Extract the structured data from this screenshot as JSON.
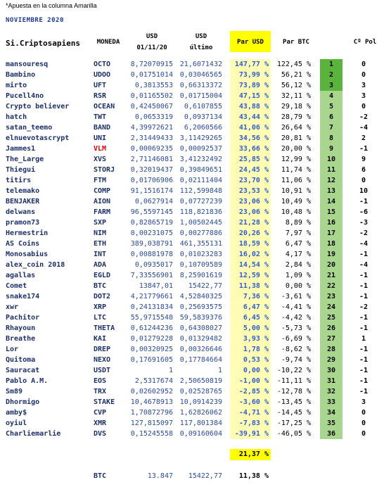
{
  "note": "*Apuesta en la columna Amarilla",
  "month": "NOVIEMBRE 2020",
  "headers": {
    "name": "Si.Criptosapiens",
    "coin": "MONEDA",
    "usd_start_1": "USD",
    "usd_start_2": "01/11/20",
    "usd_last_1": "USD",
    "usd_last_2": "último",
    "par_usd": "Par USD",
    "par_btc": "Par BTC",
    "pol": "Cº Pol"
  },
  "colors": {
    "rank_top": "#5ab43c",
    "rank_rest": "#a8d68c",
    "yellow": "#ffff00",
    "yellow_light": "#fffcb3"
  },
  "rows": [
    {
      "name": "mansouresq",
      "coin": "OCTO",
      "usd_start": "8,72070915",
      "usd_last": "21,6071432",
      "par_usd": "147,77 %",
      "par_btc": "122,45 %",
      "rank": "1",
      "pol": "0"
    },
    {
      "name": "Bambino",
      "coin": "UDOO",
      "usd_start": "0,01751014",
      "usd_last": "0,03046565",
      "par_usd": "73,99 %",
      "par_btc": "56,21 %",
      "rank": "2",
      "pol": "0"
    },
    {
      "name": "mirto",
      "coin": "UFT",
      "usd_start": "0,3813553",
      "usd_last": "0,66313372",
      "par_usd": "73,89 %",
      "par_btc": "56,12 %",
      "rank": "3",
      "pol": "3"
    },
    {
      "name": "Pucell4no",
      "coin": "RSR",
      "usd_start": "0,01165502",
      "usd_last": "0,01715004",
      "par_usd": "47,15 %",
      "par_btc": "32,11 %",
      "rank": "4",
      "pol": "3"
    },
    {
      "name": "Crypto believer",
      "coin": "OCEAN",
      "usd_start": "0,42450067",
      "usd_last": "0,6107855",
      "par_usd": "43,88 %",
      "par_btc": "29,18 %",
      "rank": "5",
      "pol": "0"
    },
    {
      "name": "hatch",
      "coin": "TWT",
      "usd_start": "0,0653319",
      "usd_last": "0,0937134",
      "par_usd": "43,44 %",
      "par_btc": "28,79 %",
      "rank": "6",
      "pol": "-2"
    },
    {
      "name": "satan_teemo",
      "coin": "BAND",
      "usd_start": "4,39972621",
      "usd_last": "6,2060566",
      "par_usd": "41,06 %",
      "par_btc": "26,64 %",
      "rank": "7",
      "pol": "-4"
    },
    {
      "name": "elnuevotascrypt",
      "coin": "UNI",
      "usd_start": "2,31449433",
      "usd_last": "3,11429265",
      "par_usd": "34,56 %",
      "par_btc": "20,81 %",
      "rank": "8",
      "pol": "2"
    },
    {
      "name": "Jammes1",
      "coin": "VLM",
      "red": true,
      "usd_start": "0,00069235",
      "usd_last": "0,00092537",
      "par_usd": "33,66 %",
      "par_btc": "20,00 %",
      "rank": "9",
      "pol": "-1"
    },
    {
      "name": "The_Large",
      "coin": "XVS",
      "usd_start": "2,71146081",
      "usd_last": "3,41232492",
      "par_usd": "25,85 %",
      "par_btc": "12,99 %",
      "rank": "10",
      "pol": "9"
    },
    {
      "name": "Thiegui",
      "coin": "STORJ",
      "usd_start": "0,32019437",
      "usd_last": "0,39849651",
      "par_usd": "24,45 %",
      "par_btc": "11,74 %",
      "rank": "11",
      "pol": "6"
    },
    {
      "name": "titirs",
      "coin": "FTM",
      "usd_start": "0,01706906",
      "usd_last": "0,02111404",
      "par_usd": "23,70 %",
      "par_btc": "11,06 %",
      "rank": "12",
      "pol": "0"
    },
    {
      "name": "telemako",
      "coin": "COMP",
      "usd_start": "91,1516174",
      "usd_last": "112,599848",
      "par_usd": "23,53 %",
      "par_btc": "10,91 %",
      "rank": "13",
      "pol": "10"
    },
    {
      "name": "BENJAKER",
      "coin": "AION",
      "usd_start": "0,0627914",
      "usd_last": "0,07727239",
      "par_usd": "23,06 %",
      "par_btc": "10,49 %",
      "rank": "14",
      "pol": "-1"
    },
    {
      "name": "delwans",
      "coin": "FARM",
      "usd_start": "96,5597145",
      "usd_last": "118,821836",
      "par_usd": "23,06 %",
      "par_btc": "10,48 %",
      "rank": "15",
      "pol": "-6"
    },
    {
      "name": "pramon73",
      "coin": "SXP",
      "usd_start": "0,82865719",
      "usd_last": "1,00502445",
      "par_usd": "21,28 %",
      "par_btc": "8,89 %",
      "rank": "16",
      "pol": "-3"
    },
    {
      "name": "Hermestrin",
      "coin": "NIM",
      "usd_start": "0,00231075",
      "usd_last": "0,00277886",
      "par_usd": "20,26 %",
      "par_btc": "7,97 %",
      "rank": "17",
      "pol": "-2"
    },
    {
      "name": "AS Coins",
      "coin": "ETH",
      "usd_start": "389,038791",
      "usd_last": "461,355131",
      "par_usd": "18,59 %",
      "par_btc": "6,47 %",
      "rank": "18",
      "pol": "-4"
    },
    {
      "name": "Monosabius",
      "coin": "INT",
      "usd_start": "0,00881978",
      "usd_last": "0,01023283",
      "par_usd": "16,02 %",
      "par_btc": "4,17 %",
      "rank": "19",
      "pol": "-1"
    },
    {
      "name": "alex_coin 2018",
      "coin": "ADA",
      "usd_start": "0,0935017",
      "usd_last": "0,10709589",
      "par_usd": "14,54 %",
      "par_btc": "2,84 %",
      "rank": "20",
      "pol": "-4"
    },
    {
      "name": "agallas",
      "coin": "EGLD",
      "usd_start": "7,33556901",
      "usd_last": "8,25901619",
      "par_usd": "12,59 %",
      "par_btc": "1,09 %",
      "rank": "21",
      "pol": "-1"
    },
    {
      "name": "Comet",
      "coin": "BTC",
      "usd_start": "13847,01",
      "usd_last": "15422,77",
      "par_usd": "11,38 %",
      "par_btc": "0,00 %",
      "rank": "22",
      "pol": "-1"
    },
    {
      "name": "snake174",
      "coin": "DOT2",
      "usd_start": "4,21779661",
      "usd_last": "4,52840325",
      "par_usd": "7,36 %",
      "par_btc": "-3,61 %",
      "rank": "23",
      "pol": "-1"
    },
    {
      "name": "xwr",
      "coin": "XRP",
      "usd_start": "0,24131834",
      "usd_last": "0,25693575",
      "par_usd": "6,47 %",
      "par_btc": "-4,41 %",
      "rank": "24",
      "pol": "-2"
    },
    {
      "name": "Pachitor",
      "coin": "LTC",
      "usd_start": "55,9715548",
      "usd_last": "59,5839376",
      "par_usd": "6,45 %",
      "par_btc": "-4,42 %",
      "rank": "25",
      "pol": "-1"
    },
    {
      "name": "Rhayoun",
      "coin": "THETA",
      "usd_start": "0,61244236",
      "usd_last": "0,64308027",
      "par_usd": "5,00 %",
      "par_btc": "-5,73 %",
      "rank": "26",
      "pol": "-1"
    },
    {
      "name": "Breathe",
      "coin": "KAI",
      "usd_start": "0,01279228",
      "usd_last": "0,01329482",
      "par_usd": "3,93 %",
      "par_btc": "-6,69 %",
      "rank": "27",
      "pol": "1"
    },
    {
      "name": "Lor",
      "coin": "DREP",
      "usd_start": "0,00320925",
      "usd_last": "0,00326646",
      "par_usd": "1,78 %",
      "par_btc": "-8,62 %",
      "rank": "28",
      "pol": "-1"
    },
    {
      "name": "Quitoma",
      "coin": "NEXO",
      "usd_start": "0,17691605",
      "usd_last": "0,17784664",
      "par_usd": "0,53 %",
      "par_btc": "-9,74 %",
      "rank": "29",
      "pol": "-1"
    },
    {
      "name": "Sauracat",
      "coin": "USDT",
      "usd_start": "1",
      "usd_last": "1",
      "par_usd": "0,00 %",
      "par_btc": "-10,22 %",
      "rank": "30",
      "pol": "-1"
    },
    {
      "name": "Pablo A.M.",
      "coin": "EOS",
      "usd_start": "2,5317674",
      "usd_last": "2,50650819",
      "par_usd": "-1,00 %",
      "par_btc": "-11,11 %",
      "rank": "31",
      "pol": "-1"
    },
    {
      "name": "Sm89",
      "coin": "TRX",
      "usd_start": "0,02602952",
      "usd_last": "0,02528765",
      "par_usd": "-2,85 %",
      "par_btc": "-12,78 %",
      "rank": "32",
      "pol": "-1"
    },
    {
      "name": "Dhormigo",
      "coin": "STAKE",
      "usd_start": "10,4678913",
      "usd_last": "10,0914239",
      "par_usd": "-3,60 %",
      "par_btc": "-13,45 %",
      "rank": "33",
      "pol": "3"
    },
    {
      "name": "amby$",
      "coin": "CVP",
      "usd_start": "1,70872796",
      "usd_last": "1,62826062",
      "par_usd": "-4,71 %",
      "par_btc": "-14,45 %",
      "rank": "34",
      "pol": "0"
    },
    {
      "name": "oyiul",
      "coin": "XMR",
      "usd_start": "127,815097",
      "usd_last": "117,801384",
      "par_usd": "-7,83 %",
      "par_btc": "-17,25 %",
      "rank": "35",
      "pol": "0"
    },
    {
      "name": "Charliemarlie",
      "coin": "DVS",
      "usd_start": "0,15245558",
      "usd_last": "0,09160604",
      "par_usd": "-39,91 %",
      "par_btc": "-46,05 %",
      "rank": "36",
      "pol": "0"
    }
  ],
  "total_par_usd": "21,37 %",
  "footer": {
    "coin": "BTC",
    "usd_start": "13.847",
    "usd_last": "15422,77",
    "par_usd": "11,38 %"
  }
}
